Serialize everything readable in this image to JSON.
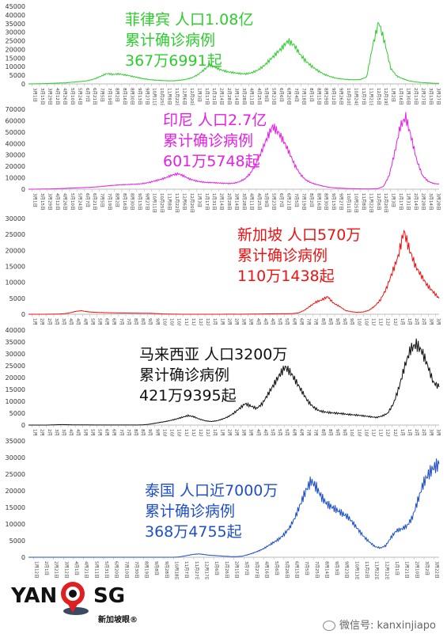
{
  "chart_data": [
    {
      "type": "line",
      "color": "#2ecc2e",
      "y_ticks": [
        "45000",
        "40000",
        "35000",
        "30000",
        "25000",
        "20000",
        "15000",
        "10000",
        "5000",
        "0"
      ],
      "ylim": [
        0,
        45000
      ],
      "x_ticks": [
        "3月1日",
        "3月15日",
        "3月29日",
        "4月12日",
        "4月26日",
        "5月10日",
        "5月24日",
        "6月7日",
        "6月21日",
        "7月5日",
        "7月19日",
        "8月2日",
        "8月16日",
        "8月30日",
        "9月13日",
        "9月27日",
        "10月11日",
        "10月25日",
        "11月8日",
        "11月22日",
        "12月6日",
        "12月20日",
        "1月3日",
        "1月17日",
        "1月31日",
        "2月14日",
        "2月28日",
        "3月14日",
        "3月28日",
        "4月11日",
        "4月25日",
        "5月9日",
        "5月23日",
        "6月6日",
        "6月20日",
        "7月4日",
        "7月18日",
        "8月1日",
        "8月15日",
        "8月29日",
        "9月12日",
        "9月26日",
        "10月10日",
        "10月24日",
        "11月7日",
        "11月21日",
        "12月5日",
        "12月19日",
        "1月2日",
        "1月16日",
        "1月30日",
        "2月13日",
        "2月27日",
        "3月13日",
        "3月27日"
      ],
      "series": [
        {
          "values": [
            0,
            50,
            150,
            250,
            400,
            500,
            600,
            900,
            1200,
            1500,
            2000,
            3000,
            4500,
            6000,
            5500,
            5800,
            5200,
            4500,
            3800,
            3000,
            2500,
            2200,
            2000,
            1800,
            1800,
            2100,
            2600,
            3500,
            5200,
            8000,
            11000,
            9500,
            8000,
            7000,
            6500,
            6000,
            5800,
            6500,
            8000,
            10500,
            14000,
            17500,
            21000,
            25000,
            22500,
            17000,
            13000,
            10000,
            7500,
            5500,
            4200,
            3300,
            2800,
            2500,
            2400,
            2600,
            4000,
            22000,
            36000,
            24000,
            9000,
            4500,
            3000,
            1800,
            1200,
            800,
            600,
            400,
            300
          ]
        }
      ],
      "annotation": [
        "菲律宾 人口1.08亿",
        "累计确诊病例",
        "367万6991起"
      ],
      "annotation_color": "#2ecc2e"
    },
    {
      "type": "line",
      "color": "#e61ee6",
      "y_ticks": [
        "70000",
        "60000",
        "50000",
        "40000",
        "30000",
        "20000",
        "10000",
        "0"
      ],
      "ylim": [
        0,
        70000
      ],
      "x_ticks": [
        "3月1日",
        "3月15日",
        "3月29日",
        "4月12日",
        "4月26日",
        "5月10日",
        "5月24日",
        "6月7日",
        "6月21日",
        "7月5日",
        "7月19日",
        "8月2日",
        "8月16日",
        "8月30日",
        "9月13日",
        "9月27日",
        "10月11日",
        "10月25日",
        "11月8日",
        "11月22日",
        "12月6日",
        "12月20日",
        "1月3日",
        "1月17日",
        "1月31日",
        "2月14日",
        "2月28日",
        "3月14日",
        "3月28日",
        "4月11日",
        "4月25日",
        "5月9日",
        "5月23日",
        "6月7日",
        "6月21日",
        "7月5日",
        "7月19日",
        "8月2日",
        "8月16日",
        "8月30日",
        "9月13日",
        "9月27日",
        "10月11日",
        "10月25日",
        "11月8日",
        "11月22日",
        "12月6日",
        "12月20日",
        "1月3日",
        "1月17日",
        "1月31日",
        "2月14日",
        "2月28日",
        "3月14日",
        "3月28日"
      ],
      "series": [
        {
          "values": [
            0,
            20,
            80,
            150,
            250,
            400,
            600,
            800,
            1000,
            1200,
            1400,
            1600,
            1900,
            2300,
            2800,
            3300,
            3600,
            3900,
            4100,
            4300,
            4600,
            5200,
            6200,
            7500,
            8800,
            10500,
            12500,
            13500,
            11500,
            9000,
            7500,
            6500,
            6000,
            5800,
            5500,
            5200,
            5000,
            5200,
            6500,
            9000,
            14000,
            22000,
            33000,
            45000,
            55000,
            50000,
            42000,
            32000,
            21000,
            13000,
            8000,
            5500,
            4000,
            2800,
            1800,
            1200,
            900,
            700,
            500,
            400,
            300,
            250,
            300,
            600,
            2500,
            12000,
            32000,
            55000,
            63000,
            45000,
            25000,
            12000,
            7000,
            5000,
            4500
          ]
        }
      ],
      "annotation": [
        "印尼 人口2.7亿",
        "累计确诊病例",
        "601万5748起"
      ],
      "annotation_color": "#e61ee6"
    },
    {
      "type": "line",
      "color": "#ee1111",
      "y_ticks": [
        "30000",
        "25000",
        "20000",
        "15000",
        "10000",
        "5000",
        "0"
      ],
      "ylim": [
        0,
        30000
      ],
      "x_ticks": [
        "1月23日",
        "2月6日",
        "2月20日",
        "3月5日",
        "3月19日",
        "4月2日",
        "4月16日",
        "4月30日",
        "5月14日",
        "5月28日",
        "6月11日",
        "6月25日",
        "7月9日",
        "7月23日",
        "8月6日",
        "8月20日",
        "9月3日",
        "9月17日",
        "10月1日",
        "10月15日",
        "10月29日",
        "11月12日",
        "11月26日",
        "12月10日",
        "12月24日",
        "1月7日",
        "1月21日",
        "2月4日",
        "2月18日",
        "3月4日",
        "3月18日",
        "4月1日",
        "4月15日",
        "4月29日",
        "5月13日",
        "5月27日",
        "6月10日",
        "6月24日",
        "7月8日",
        "7月22日",
        "8月5日",
        "8月19日",
        "9月2日",
        "9月16日",
        "9月30日",
        "10月14日",
        "10月28日",
        "11月11日",
        "11月25日",
        "12月9日",
        "12月23日",
        "1月6日",
        "1月20日",
        "2月3日",
        "2月17日",
        "3月3日",
        "3月17日"
      ],
      "series": [
        {
          "values": [
            0,
            0,
            5,
            10,
            20,
            60,
            150,
            400,
            900,
            1100,
            800,
            650,
            550,
            500,
            450,
            400,
            380,
            360,
            340,
            320,
            300,
            280,
            200,
            100,
            50,
            20,
            10,
            8,
            5,
            5,
            5,
            5,
            5,
            10,
            20,
            15,
            10,
            20,
            60,
            80,
            100,
            120,
            150,
            150,
            160,
            200,
            400,
            1200,
            2500,
            3800,
            4500,
            5500,
            3500,
            2500,
            1200,
            800,
            600,
            700,
            1200,
            2500,
            4500,
            8000,
            13000,
            18000,
            26000,
            20000,
            15000,
            12000,
            9000,
            7000,
            5000
          ]
        }
      ],
      "annotation": [
        "新加坡 人口570万",
        "累计确诊病例",
        "110万1438起"
      ],
      "annotation_color": "#ee1111"
    },
    {
      "type": "line",
      "color": "#111111",
      "y_ticks": [
        "40000",
        "35000",
        "30000",
        "25000",
        "20000",
        "15000",
        "10000",
        "5000",
        "0"
      ],
      "ylim": [
        0,
        40000
      ],
      "x_ticks": [
        "1月25日",
        "2月8日",
        "2月22日",
        "3月7日",
        "3月21日",
        "4月4日",
        "4月18日",
        "5月2日",
        "5月16日",
        "5月30日",
        "6月13日",
        "6月27日",
        "7月11日",
        "7月25日",
        "8月8日",
        "8月22日",
        "9月5日",
        "9月19日",
        "10月3日",
        "10月17日",
        "10月31日",
        "11月14日",
        "11月28日",
        "12月12日",
        "12月26日",
        "1月9日",
        "1月23日",
        "2月6日",
        "2月20日",
        "3月6日",
        "3月20日",
        "4月3日",
        "4月17日",
        "5月1日",
        "5月15日",
        "5月29日",
        "6月12日",
        "6月26日",
        "7月10日",
        "7月24日",
        "8月7日",
        "8月21日",
        "9月4日",
        "9月18日",
        "10月2日",
        "10月16日",
        "10月30日",
        "11月13日",
        "11月27日",
        "12月11日",
        "12月25日",
        "1月8日",
        "1月22日",
        "2月5日",
        "2月19日",
        "3月5日",
        "3月19日"
      ],
      "series": [
        {
          "values": [
            0,
            0,
            0,
            0,
            50,
            150,
            200,
            150,
            100,
            80,
            60,
            50,
            40,
            30,
            20,
            20,
            20,
            20,
            20,
            30,
            100,
            300,
            700,
            1100,
            1500,
            2000,
            2600,
            3300,
            4000,
            3500,
            2500,
            1800,
            1500,
            1800,
            2500,
            3500,
            5000,
            7000,
            9000,
            8000,
            7000,
            9000,
            13000,
            17000,
            21000,
            24500,
            22000,
            18000,
            14000,
            10000,
            7500,
            6000,
            5500,
            5200,
            5000,
            4800,
            4500,
            4300,
            4100,
            3800,
            3500,
            3200,
            3800,
            5000,
            9000,
            16000,
            25000,
            32000,
            34000,
            31000,
            25000,
            18000,
            16000
          ]
        }
      ],
      "annotation": [
        "马来西亚 人口3200万",
        "累计确诊病例",
        "421万9395起"
      ],
      "annotation_color": "#111111"
    },
    {
      "type": "line",
      "color": "#1f4fc8",
      "y_ticks": [
        "35000",
        "30000",
        "25000",
        "20000",
        "15000",
        "10000",
        "5000",
        "0"
      ],
      "ylim": [
        0,
        35000
      ],
      "x_ticks": [
        "1月12日",
        "2月1日",
        "2月21日",
        "3月12日",
        "4月1日",
        "4月21日",
        "5月11日",
        "5月31日",
        "6月20日",
        "7月10日",
        "7月30日",
        "8月19日",
        "9月8日",
        "9月28日",
        "10月18日",
        "11月7日",
        "11月27日",
        "12月17日",
        "1月6日",
        "1月26日",
        "2月15日",
        "3月7日",
        "3月27日",
        "4月16日",
        "5月6日",
        "5月26日",
        "6月15日",
        "7月5日",
        "7月25日",
        "8月14日",
        "9月3日",
        "9月23日",
        "10月13日",
        "11月2日",
        "11月22日",
        "12月12日",
        "1月1日",
        "1月21日",
        "2月10日",
        "3月2日",
        "3月22日"
      ],
      "series": [
        {
          "values": [
            0,
            0,
            0,
            0,
            0,
            0,
            0,
            0,
            0,
            0,
            0,
            0,
            0,
            0,
            0,
            0,
            0,
            0,
            0,
            0,
            0,
            0,
            0,
            0,
            0,
            0,
            0,
            0,
            50,
            300,
            600,
            900,
            1000,
            800,
            600,
            500,
            400,
            300,
            200,
            200,
            300,
            700,
            1200,
            1800,
            2500,
            3500,
            4500,
            5500,
            7000,
            9000,
            12000,
            16000,
            20000,
            23000,
            21000,
            18000,
            16000,
            15000,
            14000,
            13000,
            12000,
            10000,
            8000,
            6000,
            4500,
            3200,
            2800,
            3500,
            6000,
            8000,
            8500,
            9500,
            12000,
            17000,
            22000,
            25000,
            27000,
            28000
          ]
        }
      ],
      "annotation": [
        "泰国 人口近7000万",
        "累计确诊病例",
        "368万4755起"
      ],
      "annotation_color": "#1f4fc8"
    }
  ],
  "footer": {
    "logo_left": "YAN",
    "logo_right": "SG",
    "logo_sub": "新加坡眼®",
    "wechat": "微信号: kanxinjiapo"
  }
}
